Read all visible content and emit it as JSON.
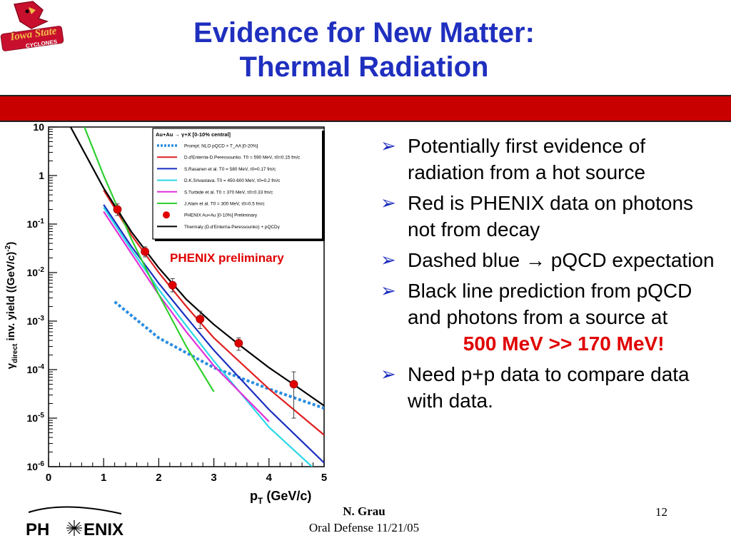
{
  "logo": {
    "line1": "Iowa State",
    "line2": "CYCLONES",
    "icon": "cardinal-mascot-icon"
  },
  "slide": {
    "title_line1": "Evidence for New Matter:",
    "title_line2": "Thermal Radiation",
    "footer_name": "N. Grau",
    "footer_event": "Oral Defense 11/21/05",
    "page_number": "12",
    "phenix_logo_text": [
      "PH",
      "ENIX"
    ],
    "accent_color": "#1f2fbf",
    "bar_color": "#c80000"
  },
  "bullets": [
    {
      "text": "Potentially first evidence of radiation from a hot source"
    },
    {
      "text": "Red is PHENIX data on photons not from decay"
    },
    {
      "pre": "Dashed blue ",
      "arrow": "→",
      "post": " pQCD expectation"
    },
    {
      "text": "Black line prediction from pQCD and photons from a source at",
      "hl1": "500 MeV",
      "hl2": ">>",
      "hl3": "170 MeV!"
    },
    {
      "text": "Need p+p data to compare data with data."
    }
  ],
  "chart_data": {
    "type": "line",
    "annotation": "PHENIX preliminary",
    "ylabel_parts": [
      "γ",
      "direct",
      " inv. yield ((GeV/c)",
      "-2",
      ")"
    ],
    "xlabel_parts": [
      "p",
      "T",
      " (GeV/c)"
    ],
    "x_range": [
      0,
      5
    ],
    "y_range": [
      1e-06,
      10
    ],
    "y_scale": "log",
    "x_ticks": [
      "0",
      "1",
      "2",
      "3",
      "4",
      "5"
    ],
    "y_ticks": [
      {
        "base": "10",
        "exp": ""
      },
      {
        "base": "1",
        "exp": ""
      },
      {
        "base": "10",
        "exp": "-1"
      },
      {
        "base": "10",
        "exp": "-2"
      },
      {
        "base": "10",
        "exp": "-3"
      },
      {
        "base": "10",
        "exp": "-4"
      },
      {
        "base": "10",
        "exp": "-5"
      },
      {
        "base": "10",
        "exp": "-6"
      }
    ],
    "legend_position": "top-right",
    "legend_header": "Au+Au → γ+X  [0-10% central]",
    "series": [
      {
        "name": "Prompt: NLO pQCD × T_AA [0-20%]",
        "color": "#2a8de0",
        "dashed": true,
        "points": [
          [
            1.2,
            0.0025
          ],
          [
            2.0,
            0.00045
          ],
          [
            3.0,
            0.00011
          ],
          [
            4.0,
            4e-05
          ],
          [
            5.0,
            1.6e-05
          ]
        ]
      },
      {
        "name": "D.d'Enterria-D.Peressounko. T0 = 590 MeV, τ0=0.15 fm/c",
        "color": "#e02020",
        "points": [
          [
            1.0,
            0.5
          ],
          [
            1.5,
            0.06
          ],
          [
            2.0,
            0.01
          ],
          [
            2.5,
            0.002
          ],
          [
            3.0,
            0.00045
          ],
          [
            4.0,
            4e-05
          ],
          [
            5.0,
            4.5e-06
          ]
        ]
      },
      {
        "name": "S.Rasanen et al. T0 = 580 MeV, τ0=0.17 fm/c",
        "color": "#1a2fc0",
        "points": [
          [
            1.0,
            0.25
          ],
          [
            1.5,
            0.035
          ],
          [
            2.0,
            0.006
          ],
          [
            2.5,
            0.0012
          ],
          [
            3.0,
            0.00025
          ],
          [
            4.0,
            1.5e-05
          ],
          [
            5.0,
            1.2e-06
          ]
        ]
      },
      {
        "name": "D.K.Srivastava. T0 = 450-600 MeV, τ0=0.2 fm/c",
        "color": "#2ad8e8",
        "points": [
          [
            1.0,
            0.22
          ],
          [
            1.5,
            0.03
          ],
          [
            2.0,
            0.0045
          ],
          [
            2.5,
            0.0008
          ],
          [
            3.0,
            0.00015
          ],
          [
            4.0,
            6.5e-06
          ],
          [
            4.9,
            7.5e-07
          ]
        ]
      },
      {
        "name": "S.Turbide et al. T0 = 370 MeV, τ0=0.33 fm/c",
        "color": "#e030d8",
        "points": [
          [
            1.0,
            0.18
          ],
          [
            1.5,
            0.025
          ],
          [
            2.0,
            0.0035
          ],
          [
            2.5,
            0.0006
          ],
          [
            3.0,
            0.00012
          ],
          [
            4.0,
            8.5e-06
          ]
        ]
      },
      {
        "name": "J.Alam et al. T0 = 300 MeV, τ0=0.5 fm/c",
        "color": "#30d030",
        "points": [
          [
            0.65,
            10
          ],
          [
            1.0,
            1.0
          ],
          [
            1.5,
            0.05
          ],
          [
            2.0,
            0.0035
          ],
          [
            2.5,
            0.0003
          ],
          [
            3.0,
            3.5e-05
          ]
        ]
      },
      {
        "name": "PHENIX Au+Au [0-10%] Preliminary",
        "color": "#e00000",
        "marker": true,
        "points": [
          {
            "x": 1.25,
            "y": 0.2,
            "ylo": 0.15,
            "yhi": 0.26
          },
          {
            "x": 1.75,
            "y": 0.027,
            "ylo": 0.021,
            "yhi": 0.034
          },
          {
            "x": 2.25,
            "y": 0.0055,
            "ylo": 0.004,
            "yhi": 0.0075
          },
          {
            "x": 2.75,
            "y": 0.0011,
            "ylo": 0.0007,
            "yhi": 0.0016
          },
          {
            "x": 3.45,
            "y": 0.00035,
            "ylo": 0.00025,
            "yhi": 0.00045
          },
          {
            "x": 4.45,
            "y": 5e-05,
            "ylo": 1e-05,
            "yhi": 9e-05
          }
        ]
      },
      {
        "name": "Thermalγ (D.d'Enterria-Peressounko) + pQCDγ",
        "color": "#000000",
        "points": [
          [
            0.4,
            10
          ],
          [
            1.0,
            0.55
          ],
          [
            1.5,
            0.07
          ],
          [
            2.0,
            0.0125
          ],
          [
            2.5,
            0.0028
          ],
          [
            3.0,
            0.00085
          ],
          [
            3.5,
            0.0003
          ],
          [
            4.0,
            0.00011
          ],
          [
            4.5,
            4.5e-05
          ],
          [
            5.0,
            1.8e-05
          ]
        ]
      }
    ]
  }
}
